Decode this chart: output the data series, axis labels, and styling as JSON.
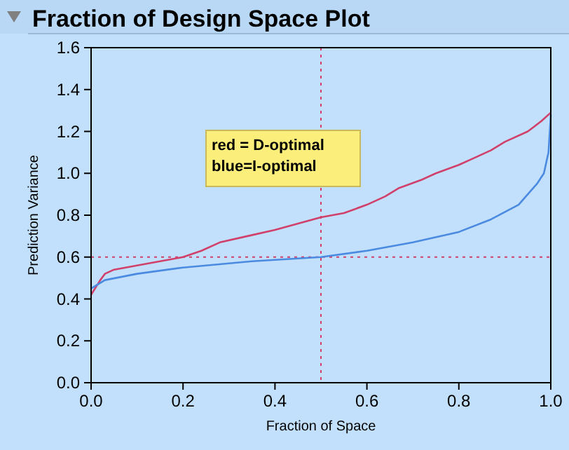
{
  "chart_data": {
    "type": "line",
    "title": "Fraction of Design Space Plot",
    "xlabel": "Fraction of Space",
    "ylabel": "Prediction Variance",
    "xlim": [
      0,
      1
    ],
    "ylim": [
      0,
      1.6
    ],
    "xticks": [
      {
        "value": 0,
        "label": "0.0"
      },
      0.2,
      0.4,
      0.6,
      0.8,
      {
        "value": 1,
        "label": "1.0"
      }
    ],
    "yticks": [
      {
        "value": 0,
        "label": "0.0"
      },
      0.2,
      0.4,
      0.6,
      0.8,
      {
        "value": 1,
        "label": "1.0"
      },
      1.2,
      1.4,
      1.6
    ],
    "series": [
      {
        "color": "#d0406a",
        "x": [
          0,
          0.02,
          0.03,
          0.05,
          0.1,
          0.15,
          0.2,
          0.24,
          0.28,
          0.34,
          0.4,
          0.45,
          0.5,
          0.55,
          0.6,
          0.64,
          0.67,
          0.72,
          0.75,
          0.8,
          0.83,
          0.87,
          0.9,
          0.95,
          0.98,
          1
        ],
        "values": [
          0.42,
          0.49,
          0.52,
          0.54,
          0.56,
          0.58,
          0.6,
          0.63,
          0.67,
          0.7,
          0.73,
          0.76,
          0.79,
          0.81,
          0.85,
          0.89,
          0.93,
          0.97,
          1.0,
          1.04,
          1.07,
          1.11,
          1.15,
          1.2,
          1.25,
          1.29
        ]
      },
      {
        "color": "#4a8ae0",
        "x": [
          0,
          0.03,
          0.1,
          0.2,
          0.35,
          0.5,
          0.6,
          0.7,
          0.8,
          0.87,
          0.93,
          0.97,
          0.985,
          0.995,
          1
        ],
        "values": [
          0.45,
          0.49,
          0.52,
          0.55,
          0.58,
          0.6,
          0.63,
          0.67,
          0.72,
          0.78,
          0.85,
          0.95,
          1.0,
          1.1,
          1.28
        ]
      }
    ],
    "ref_lines": [
      {
        "axis": "x",
        "value": 0.5,
        "color": "#d0406a",
        "line_style": "dotted"
      },
      {
        "axis": "y",
        "value": 0.6,
        "color": "#d0406a",
        "line_style": "dotted"
      }
    ],
    "annotations": [
      "red = D-optimal\nblue=I-optimal"
    ],
    "grid": false,
    "line_style": "solid"
  }
}
